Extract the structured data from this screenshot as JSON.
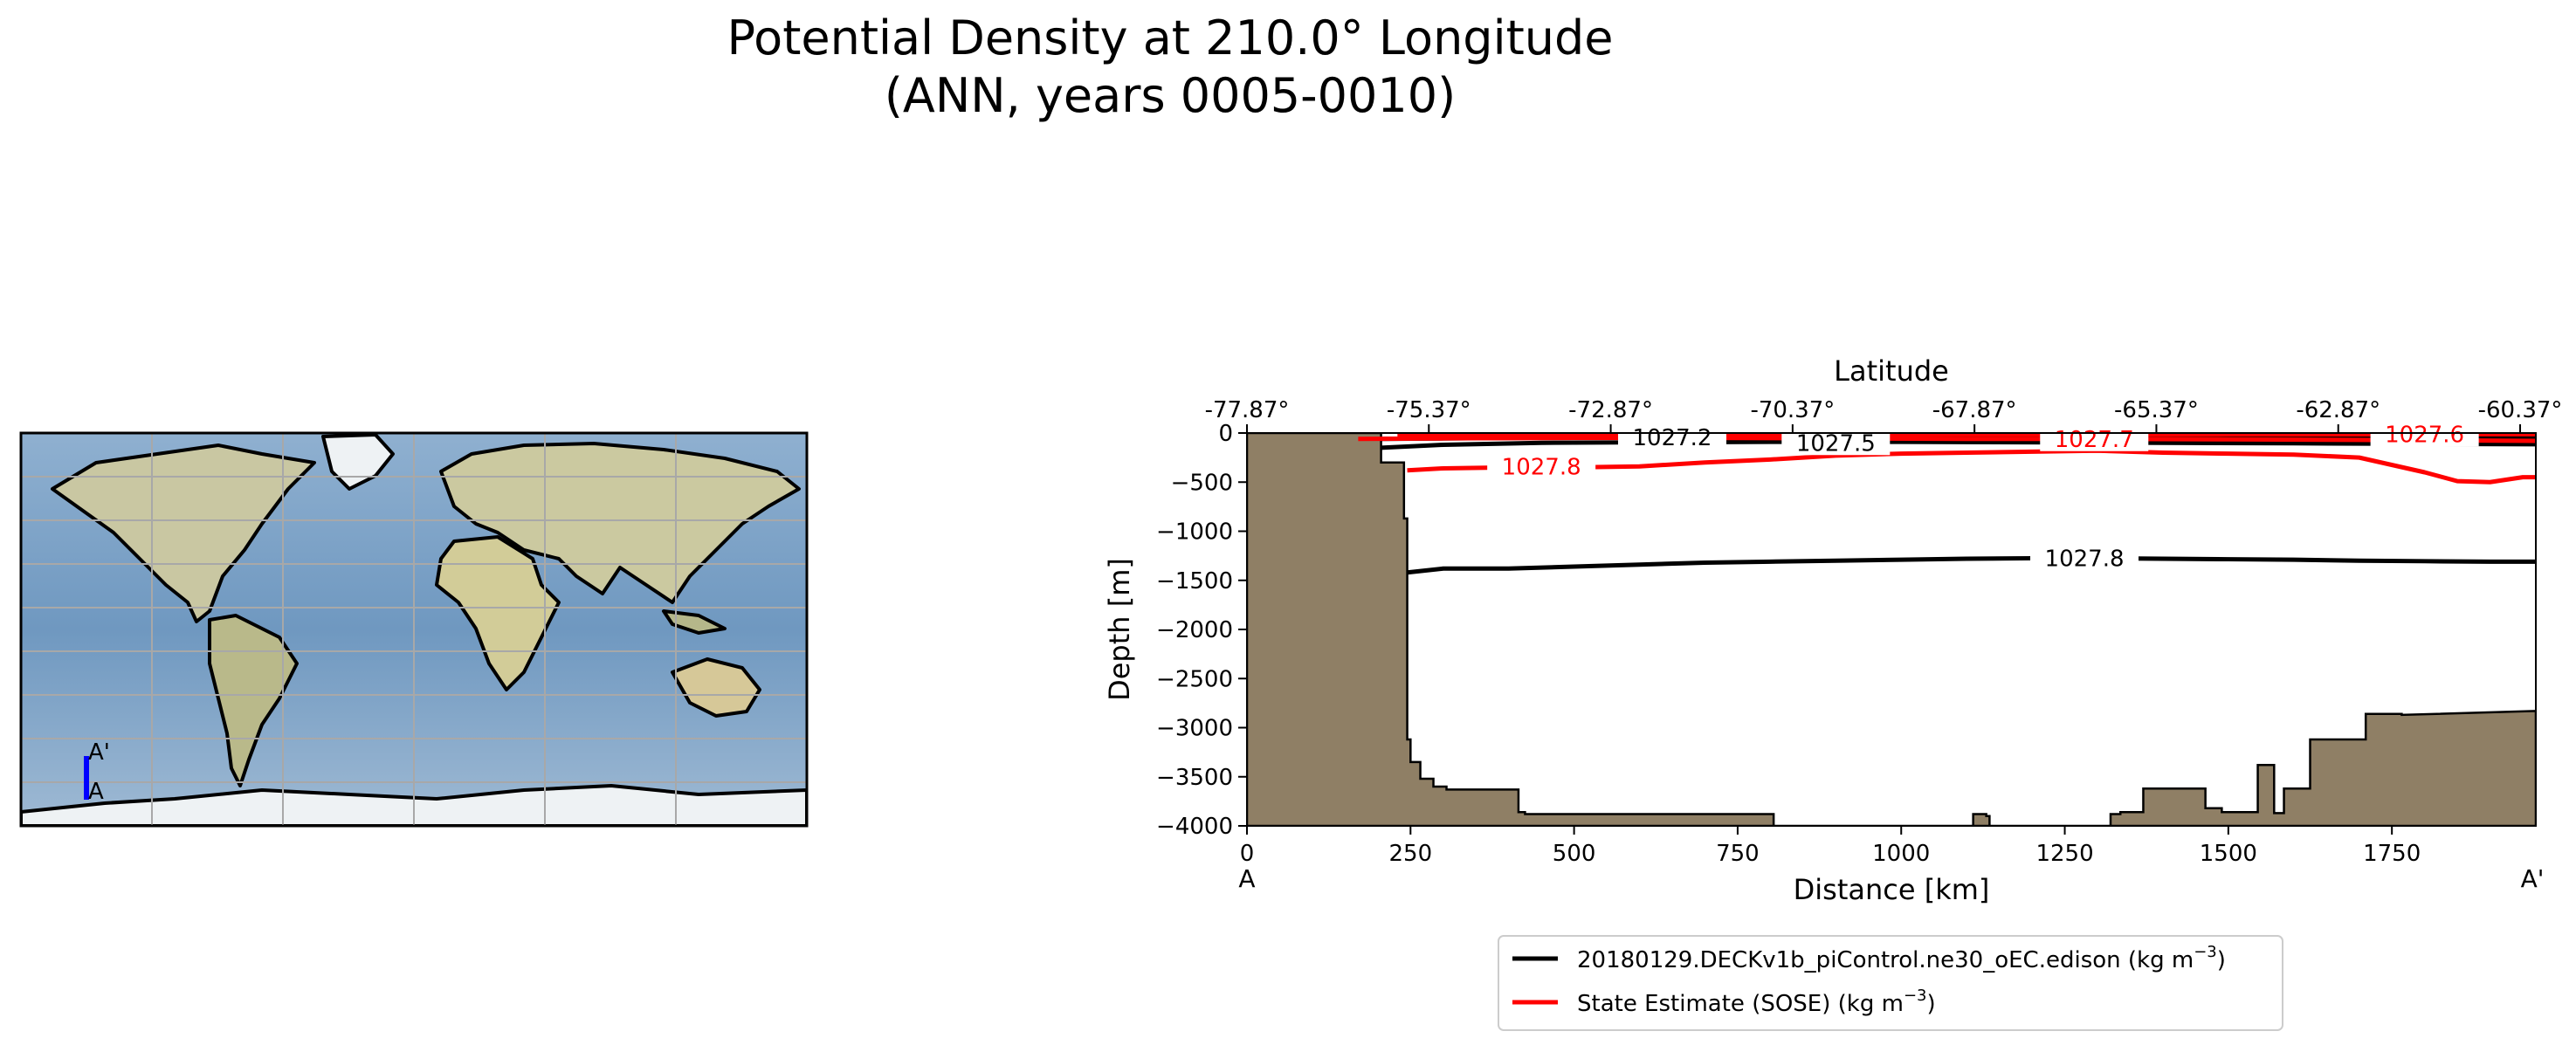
{
  "title": {
    "line1": "Potential Density at 210.0° Longitude",
    "line2": "(ANN, years 0005-0010)"
  },
  "inset_map": {
    "transect_start_label": "A",
    "transect_end_label": "A'",
    "transect_longitude_deg": 210.0,
    "transect_lat_range": [
      -77.87,
      -60.37
    ],
    "transect_color": "#0000ff"
  },
  "chart_data": {
    "type": "line",
    "subtype": "contour transect",
    "xlabel": "Distance [km]",
    "ylabel": "Depth [m]",
    "top_axis_label": "Latitude",
    "xlim": [
      0,
      1970
    ],
    "ylim": [
      -4000,
      0
    ],
    "x_ticks": [
      0,
      250,
      500,
      750,
      1000,
      1250,
      1500,
      1750
    ],
    "x_tick_labels": [
      "0",
      "250",
      "500",
      "750",
      "1000",
      "1250",
      "1500",
      "1750"
    ],
    "y_ticks": [
      0,
      -500,
      -1000,
      -1500,
      -2000,
      -2500,
      -3000,
      -3500,
      -4000
    ],
    "y_tick_labels": [
      "0",
      "−500",
      "−1000",
      "−1500",
      "−2000",
      "−2500",
      "−3000",
      "−3500",
      "−4000"
    ],
    "top_ticks_km": [
      0,
      278,
      556,
      834,
      1112,
      1390,
      1668,
      1946
    ],
    "top_tick_labels": [
      "-77.87°",
      "-75.37°",
      "-72.87°",
      "-70.37°",
      "-67.87°",
      "-65.37°",
      "-62.87°",
      "-60.37°"
    ],
    "end_labels": [
      "A",
      "A'"
    ],
    "bathymetry_color": "#8f7f65",
    "bathymetry": {
      "x": [
        0,
        205,
        205,
        240,
        240,
        245,
        245,
        250,
        250,
        265,
        265,
        285,
        285,
        305,
        305,
        415,
        415,
        425,
        425,
        805,
        805,
        1110,
        1110,
        1130,
        1130,
        1135,
        1135,
        1320,
        1320,
        1335,
        1335,
        1370,
        1370,
        1465,
        1465,
        1490,
        1490,
        1545,
        1545,
        1570,
        1570,
        1585,
        1585,
        1625,
        1625,
        1710,
        1710,
        1765,
        1765,
        1970
      ],
      "y": [
        0,
        0,
        -300,
        -300,
        -870,
        -870,
        -3120,
        -3120,
        -3350,
        -3350,
        -3520,
        -3520,
        -3600,
        -3600,
        -3630,
        -3630,
        -3860,
        -3860,
        -3880,
        -3880,
        -4000,
        -4000,
        -3880,
        -3880,
        -3900,
        -3900,
        -4000,
        -4000,
        -3880,
        -3880,
        -3860,
        -3860,
        -3620,
        -3620,
        -3820,
        -3820,
        -3860,
        -3860,
        -3380,
        -3380,
        -3870,
        -3870,
        -3620,
        -3620,
        -3120,
        -3120,
        -2860,
        -2860,
        -2870,
        -2830
      ]
    },
    "series": [
      {
        "name": "20180129.DECKv1b_piControl.ne30_oEC.edison (kg m⁻³)",
        "legend_main": "20180129.DECKv1b_piControl.ne30_oEC.edison (kg m",
        "legend_sup": "−3",
        "legend_end": ")",
        "color": "#000000",
        "contours": [
          {
            "level": "1027.8",
            "x": [
              245,
              300,
              400,
              500,
              600,
              700,
              800,
              900,
              1000,
              1100,
              1200,
              1300,
              1400,
              1500,
              1600,
              1700,
              1800,
              1900,
              1970
            ],
            "y": [
              -1420,
              -1380,
              -1380,
              -1360,
              -1340,
              -1320,
              -1310,
              -1300,
              -1290,
              -1280,
              -1275,
              -1275,
              -1280,
              -1285,
              -1290,
              -1300,
              -1305,
              -1310,
              -1310
            ],
            "label_x": 1280,
            "label_y": -1275
          },
          {
            "level": "1027.5",
            "x": [
              205,
              300,
              450,
              600,
              800,
              1000,
              1200,
              1400,
              1600,
              1800,
              1970
            ],
            "y": [
              -150,
              -120,
              -100,
              -95,
              -90,
              -90,
              -95,
              -100,
              -105,
              -110,
              -115
            ],
            "label_x": 900,
            "label_y": -100
          },
          {
            "level": "1027.2",
            "x": [
              205,
              400,
              700,
              1000,
              1300,
              1600,
              1970
            ],
            "y": [
              -60,
              -50,
              -45,
              -40,
              -40,
              -45,
              -50
            ],
            "label_x": 650,
            "label_y": -45
          }
        ]
      },
      {
        "name": "State Estimate (SOSE) (kg m⁻³)",
        "legend_main": "State Estimate (SOSE) (kg m",
        "legend_sup": "−3",
        "legend_end": ")",
        "color": "#ff0000",
        "contours": [
          {
            "level": "1027.8",
            "x": [
              245,
              300,
              400,
              500,
              600,
              700,
              800,
              900,
              1000,
              1100,
              1200,
              1300,
              1400,
              1500,
              1600,
              1700,
              1800,
              1850,
              1900,
              1950,
              1970
            ],
            "y": [
              -380,
              -360,
              -350,
              -350,
              -340,
              -300,
              -270,
              -230,
              -210,
              -200,
              -190,
              -180,
              -200,
              -210,
              -220,
              -250,
              -400,
              -490,
              -500,
              -450,
              -450
            ],
            "label_x": 450,
            "label_y": -340
          },
          {
            "level": "1027.7",
            "x": [
              170,
              300,
              500,
              700,
              900,
              1100,
              1300,
              1500,
              1700,
              1970
            ],
            "y": [
              -60,
              -55,
              -50,
              -50,
              -55,
              -60,
              -60,
              -65,
              -70,
              -80
            ],
            "label_x": 1295,
            "label_y": -60
          },
          {
            "level": "1027.6",
            "x": [
              230,
              400,
              700,
              1000,
              1300,
              1600,
              1900,
              1970
            ],
            "y": [
              -20,
              -18,
              -15,
              -15,
              -15,
              -15,
              -12,
              -12
            ],
            "label_x": 1800,
            "label_y": -12
          }
        ]
      }
    ]
  }
}
